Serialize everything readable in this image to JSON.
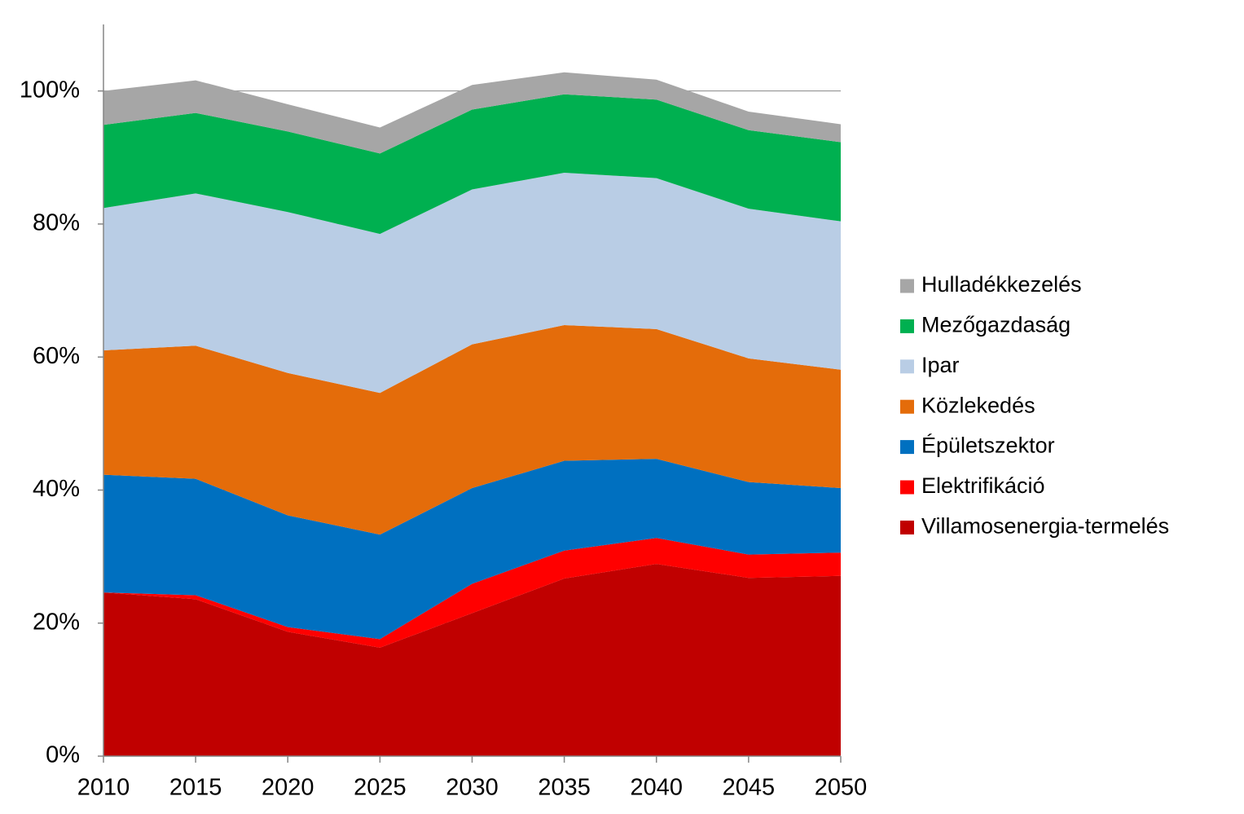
{
  "chart_data": {
    "type": "stacked_area",
    "x": [
      2010,
      2015,
      2020,
      2025,
      2030,
      2035,
      2040,
      2045,
      2050
    ],
    "xlim": [
      2010,
      2050
    ],
    "xticks": [
      2010,
      2015,
      2020,
      2025,
      2030,
      2035,
      2040,
      2045,
      2050
    ],
    "ylim": [
      0,
      110
    ],
    "yticks": [
      {
        "value": 0,
        "label": "0%"
      },
      {
        "value": 20,
        "label": "20%"
      },
      {
        "value": 40,
        "label": "40%"
      },
      {
        "value": 60,
        "label": "60%"
      },
      {
        "value": 80,
        "label": "80%"
      },
      {
        "value": 100,
        "label": "100%"
      }
    ],
    "grid": true,
    "legend": "right",
    "series": [
      {
        "name": "Villamosenergia-termelés",
        "color": "#c00000",
        "values": [
          24.6,
          23.6,
          18.7,
          16.3,
          21.5,
          26.7,
          28.9,
          26.8,
          27.1
        ]
      },
      {
        "name": "Elektrifikáció",
        "color": "#ff0000",
        "values": [
          0,
          0.6,
          0.7,
          1.3,
          4.4,
          4.2,
          3.9,
          3.5,
          3.5
        ]
      },
      {
        "name": "Épületszektor",
        "color": "#0070c0",
        "values": [
          17.7,
          17.5,
          16.8,
          15.7,
          14.4,
          13.5,
          11.9,
          10.9,
          9.7
        ]
      },
      {
        "name": "Közlekedés",
        "color": "#e46c0a",
        "values": [
          18.7,
          20.0,
          21.4,
          21.3,
          21.6,
          20.4,
          19.5,
          18.6,
          17.8
        ]
      },
      {
        "name": "Ipar",
        "color": "#b9cde5",
        "values": [
          21.4,
          22.9,
          24.2,
          23.9,
          23.3,
          22.9,
          22.7,
          22.5,
          22.3
        ]
      },
      {
        "name": "Mezőgazdaság",
        "color": "#00b050",
        "values": [
          12.5,
          12.1,
          12.1,
          12.1,
          12.0,
          11.8,
          11.8,
          11.8,
          11.9
        ]
      },
      {
        "name": "Hulladékkezelés",
        "color": "#a6a6a6",
        "values": [
          5.1,
          4.9,
          4.1,
          3.9,
          3.7,
          3.3,
          3.0,
          2.8,
          2.7
        ]
      }
    ]
  }
}
